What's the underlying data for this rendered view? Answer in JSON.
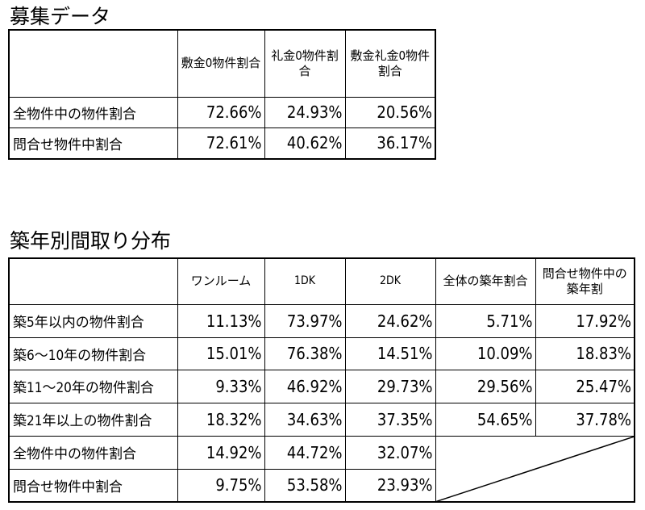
{
  "recruit": {
    "title": "募集データ",
    "columns": [
      "",
      "敷金0物件割合",
      "礼金0物件割合",
      "敷金礼金0物件割合"
    ],
    "rows": [
      {
        "label": "全物件中の物件割合",
        "values": [
          "72.66%",
          "24.93%",
          "20.56%"
        ]
      },
      {
        "label": "問合せ物件中割合",
        "values": [
          "72.61%",
          "40.62%",
          "36.17%"
        ]
      }
    ]
  },
  "age_layout": {
    "title": "築年別間取り分布",
    "columns": [
      "",
      "ワンルーム",
      "1DK",
      "2DK",
      "全体の築年割合",
      "問合せ物件中の築年割"
    ],
    "rows": [
      {
        "label": "築5年以内の物件割合",
        "values": [
          "11.13%",
          "73.97%",
          "24.62%",
          "5.71%",
          "17.92%"
        ]
      },
      {
        "label": "築6～10年の物件割合",
        "values": [
          "15.01%",
          "76.38%",
          "14.51%",
          "10.09%",
          "18.83%"
        ]
      },
      {
        "label": "築11～20年の物件割合",
        "values": [
          "9.33%",
          "46.92%",
          "29.73%",
          "29.56%",
          "25.47%"
        ]
      },
      {
        "label": "築21年以上の物件割合",
        "values": [
          "18.32%",
          "34.63%",
          "37.35%",
          "54.65%",
          "37.78%"
        ]
      },
      {
        "label": "全物件中の物件割合",
        "values": [
          "14.92%",
          "44.72%",
          "32.07%"
        ]
      },
      {
        "label": "問合せ物件中割合",
        "values": [
          "9.75%",
          "53.58%",
          "23.93%"
        ]
      }
    ]
  }
}
